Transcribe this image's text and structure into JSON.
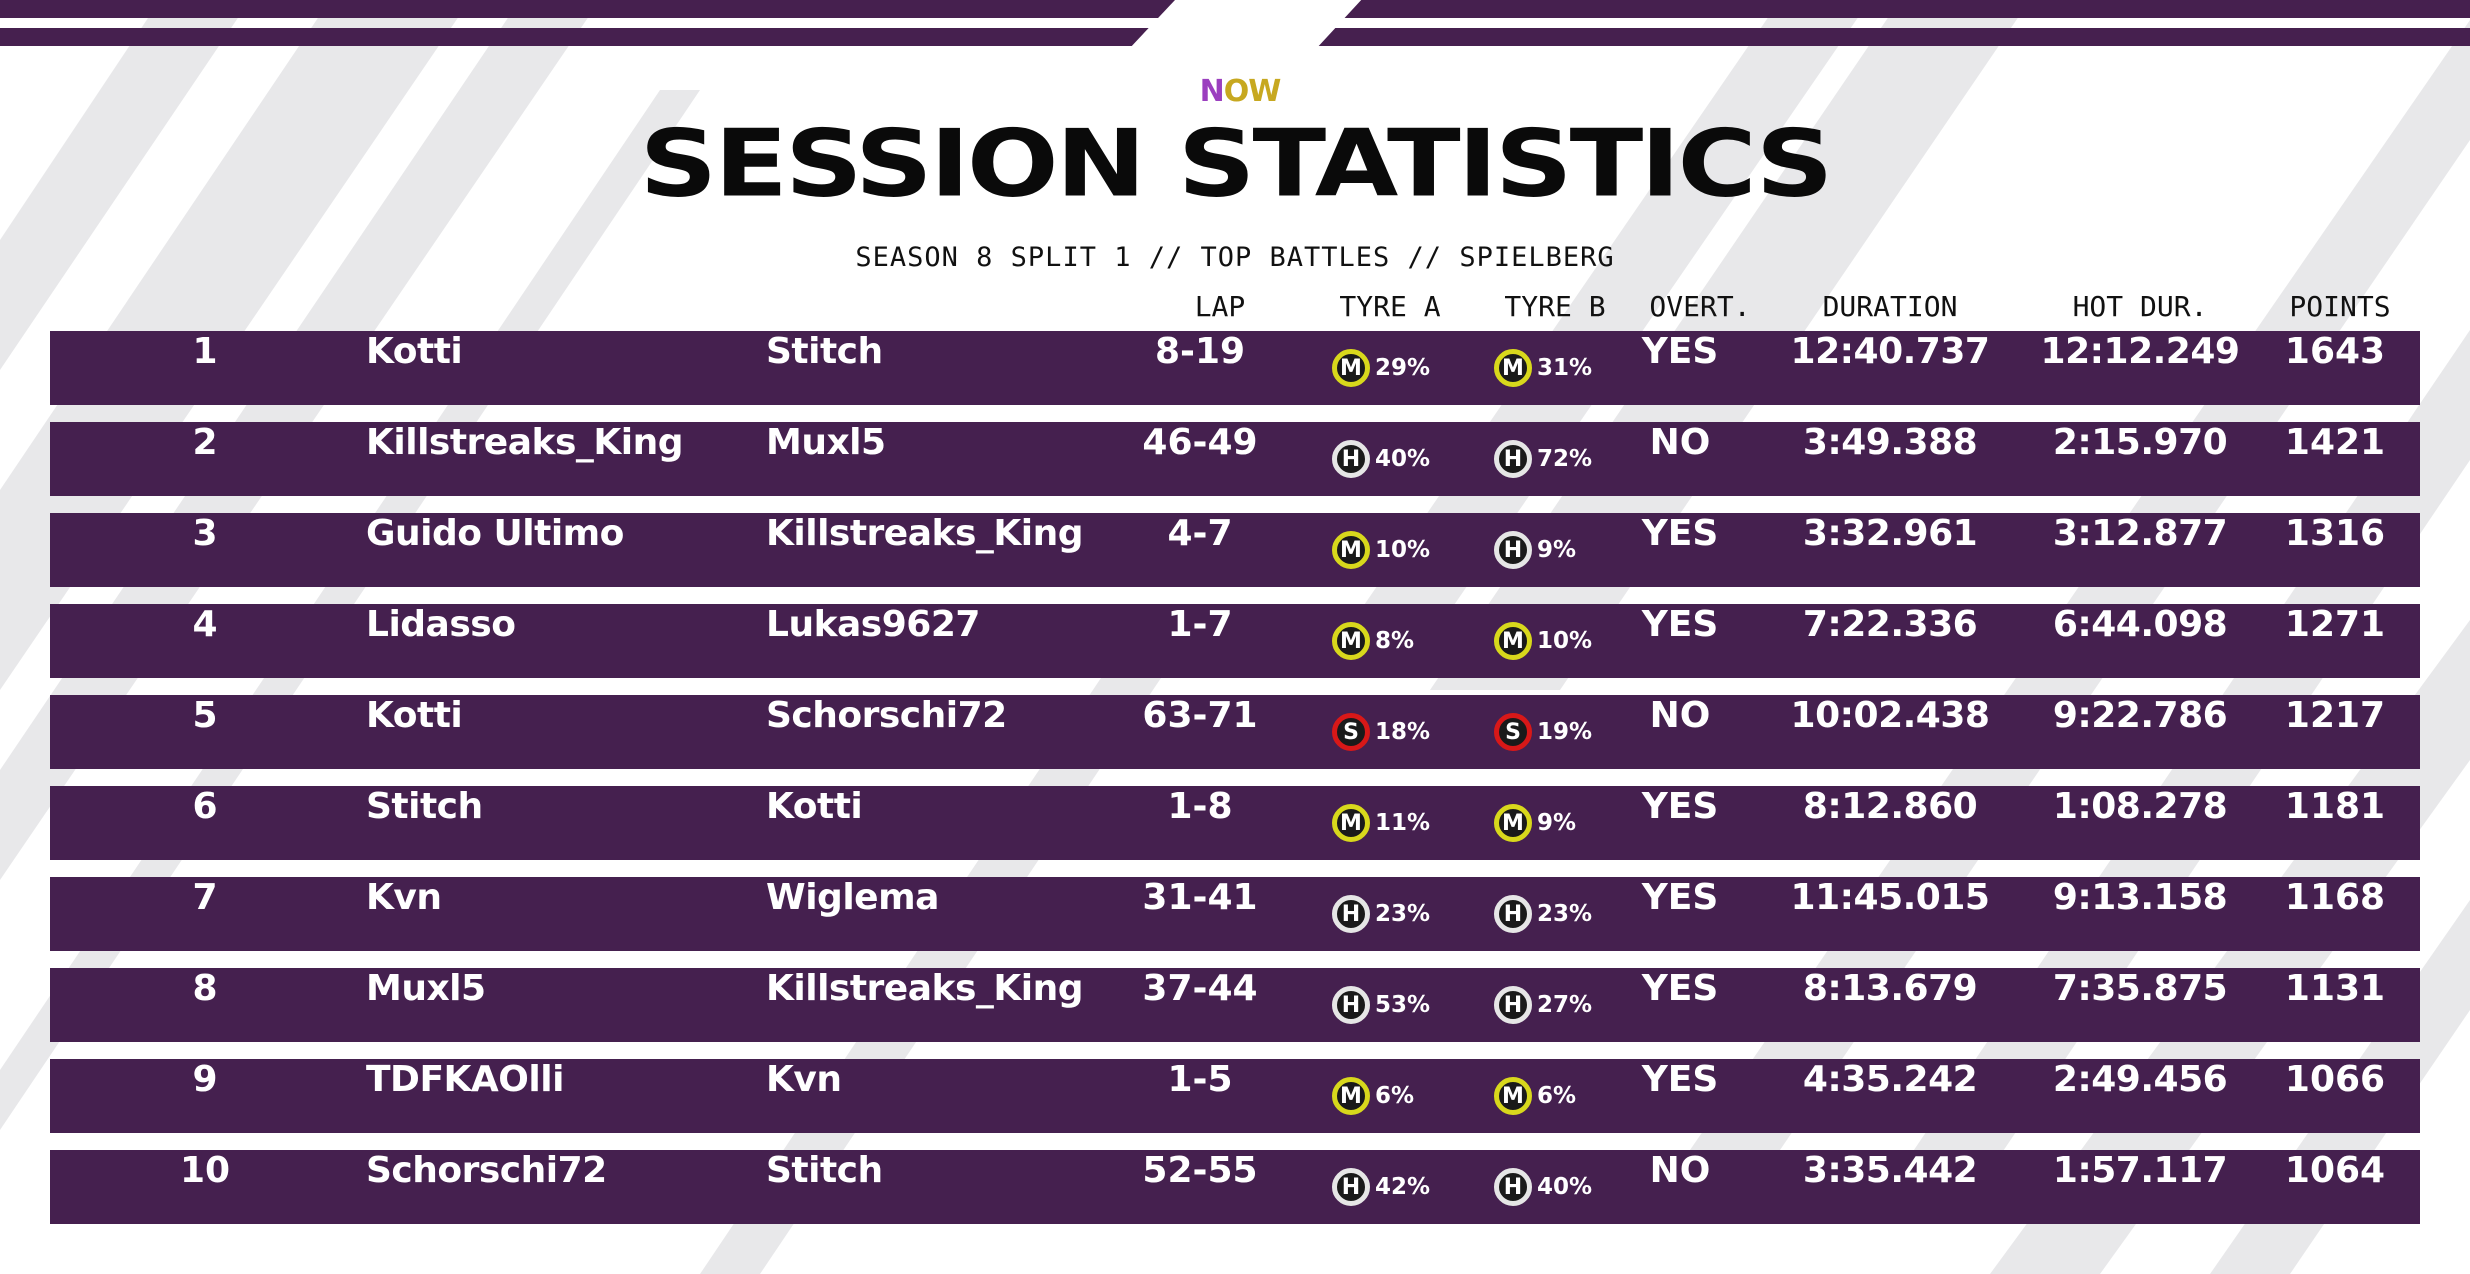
{
  "header": {
    "logo": {
      "n": "N",
      "o": "O",
      "w": "W"
    },
    "title": "SESSION STATISTICS",
    "subtitle": "SEASON 8 SPLIT 1 // TOP BATTLES // SPIELBERG"
  },
  "columns": {
    "lap": "LAP",
    "tyre_a": "TYRE A",
    "tyre_b": "TYRE B",
    "overtake": "OVERT.",
    "duration": "DURATION",
    "hot_duration": "HOT DUR.",
    "points": "POINTS"
  },
  "colors": {
    "row_bg": "#45204f",
    "header_bar": "#46204f",
    "medium": "#d8d81c",
    "hard": "#e6e6e6",
    "soft": "#d81818"
  },
  "rows": [
    {
      "rank": "1",
      "driver": "Kotti",
      "opponent": "Stitch",
      "lap": "8-19",
      "tyre_a": {
        "c": "M",
        "p": "29%"
      },
      "tyre_b": {
        "c": "M",
        "p": "31%"
      },
      "overtake": "YES",
      "duration": "12:40.737",
      "hot": "12:12.249",
      "points": "1643"
    },
    {
      "rank": "2",
      "driver": "Killstreaks_King",
      "opponent": "Muxl5",
      "lap": "46-49",
      "tyre_a": {
        "c": "H",
        "p": "40%"
      },
      "tyre_b": {
        "c": "H",
        "p": "72%"
      },
      "overtake": "NO",
      "duration": "3:49.388",
      "hot": "2:15.970",
      "points": "1421"
    },
    {
      "rank": "3",
      "driver": "Guido Ultimo",
      "opponent": "Killstreaks_King",
      "lap": "4-7",
      "tyre_a": {
        "c": "M",
        "p": "10%"
      },
      "tyre_b": {
        "c": "H",
        "p": "9%"
      },
      "overtake": "YES",
      "duration": "3:32.961",
      "hot": "3:12.877",
      "points": "1316"
    },
    {
      "rank": "4",
      "driver": "Lidasso",
      "opponent": "Lukas9627",
      "lap": "1-7",
      "tyre_a": {
        "c": "M",
        "p": "8%"
      },
      "tyre_b": {
        "c": "M",
        "p": "10%"
      },
      "overtake": "YES",
      "duration": "7:22.336",
      "hot": "6:44.098",
      "points": "1271"
    },
    {
      "rank": "5",
      "driver": "Kotti",
      "opponent": "Schorschi72",
      "lap": "63-71",
      "tyre_a": {
        "c": "S",
        "p": "18%"
      },
      "tyre_b": {
        "c": "S",
        "p": "19%"
      },
      "overtake": "NO",
      "duration": "10:02.438",
      "hot": "9:22.786",
      "points": "1217"
    },
    {
      "rank": "6",
      "driver": "Stitch",
      "opponent": "Kotti",
      "lap": "1-8",
      "tyre_a": {
        "c": "M",
        "p": "11%"
      },
      "tyre_b": {
        "c": "M",
        "p": "9%"
      },
      "overtake": "YES",
      "duration": "8:12.860",
      "hot": "1:08.278",
      "points": "1181"
    },
    {
      "rank": "7",
      "driver": "Kvn",
      "opponent": "Wiglema",
      "lap": "31-41",
      "tyre_a": {
        "c": "H",
        "p": "23%"
      },
      "tyre_b": {
        "c": "H",
        "p": "23%"
      },
      "overtake": "YES",
      "duration": "11:45.015",
      "hot": "9:13.158",
      "points": "1168"
    },
    {
      "rank": "8",
      "driver": "Muxl5",
      "opponent": "Killstreaks_King",
      "lap": "37-44",
      "tyre_a": {
        "c": "H",
        "p": "53%"
      },
      "tyre_b": {
        "c": "H",
        "p": "27%"
      },
      "overtake": "YES",
      "duration": "8:13.679",
      "hot": "7:35.875",
      "points": "1131"
    },
    {
      "rank": "9",
      "driver": "TDFKAOlli",
      "opponent": "Kvn",
      "lap": "1-5",
      "tyre_a": {
        "c": "M",
        "p": "6%"
      },
      "tyre_b": {
        "c": "M",
        "p": "6%"
      },
      "overtake": "YES",
      "duration": "4:35.242",
      "hot": "2:49.456",
      "points": "1066"
    },
    {
      "rank": "10",
      "driver": "Schorschi72",
      "opponent": "Stitch",
      "lap": "52-55",
      "tyre_a": {
        "c": "H",
        "p": "42%"
      },
      "tyre_b": {
        "c": "H",
        "p": "40%"
      },
      "overtake": "NO",
      "duration": "3:35.442",
      "hot": "1:57.117",
      "points": "1064"
    }
  ]
}
